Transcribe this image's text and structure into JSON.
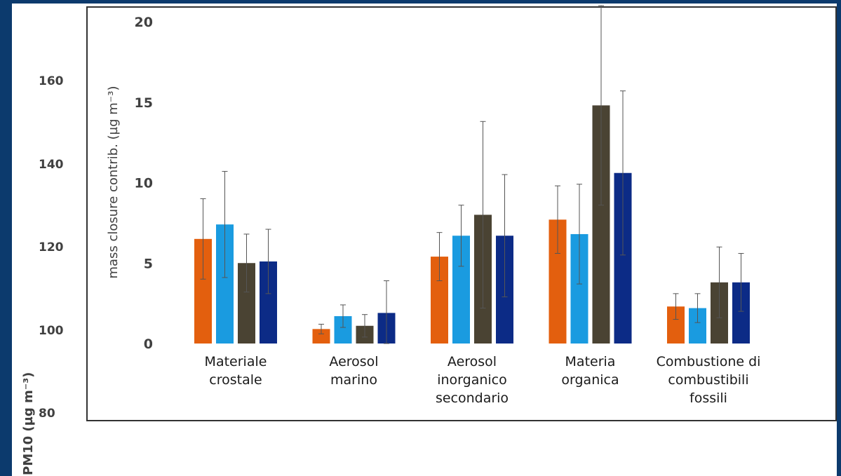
{
  "pm_axis": {
    "label": "PM10 (µg m⁻³)",
    "ticks": [
      "160",
      "140",
      "120",
      "100",
      "80"
    ]
  },
  "chart_data": {
    "type": "bar",
    "title": "",
    "ylabel": "mass closure contrib. (µg m⁻³)",
    "xlabel": "",
    "ylim": [
      0,
      20
    ],
    "yticks": [
      0,
      5,
      10,
      15,
      20
    ],
    "categories": [
      [
        "Materiale",
        "crostale"
      ],
      [
        "Aerosol",
        "marino"
      ],
      [
        "Aerosol",
        "inorganico",
        "secondario"
      ],
      [
        "Materia",
        "organica"
      ],
      [
        "Combustione di",
        "combustibili",
        "fossili"
      ]
    ],
    "series_colors": [
      "#e35f0e",
      "#1a9be0",
      "#4a4333",
      "#0c2b86"
    ],
    "series": [
      {
        "values": [
          6.5,
          0.9,
          5.4,
          7.7,
          2.3
        ],
        "errors": [
          2.5,
          0.3,
          1.5,
          2.1,
          0.8
        ]
      },
      {
        "values": [
          7.4,
          1.7,
          6.7,
          6.8,
          2.2
        ],
        "errors": [
          3.3,
          0.7,
          1.9,
          3.1,
          0.9
        ]
      },
      {
        "values": [
          5.0,
          1.1,
          8.0,
          14.8,
          3.8
        ],
        "errors": [
          1.8,
          0.7,
          5.8,
          6.2,
          2.2
        ]
      },
      {
        "values": [
          5.1,
          1.9,
          6.7,
          10.6,
          3.8
        ],
        "errors": [
          2.0,
          2.0,
          3.8,
          5.1,
          1.8
        ]
      }
    ],
    "grid": false,
    "legend": "none"
  }
}
